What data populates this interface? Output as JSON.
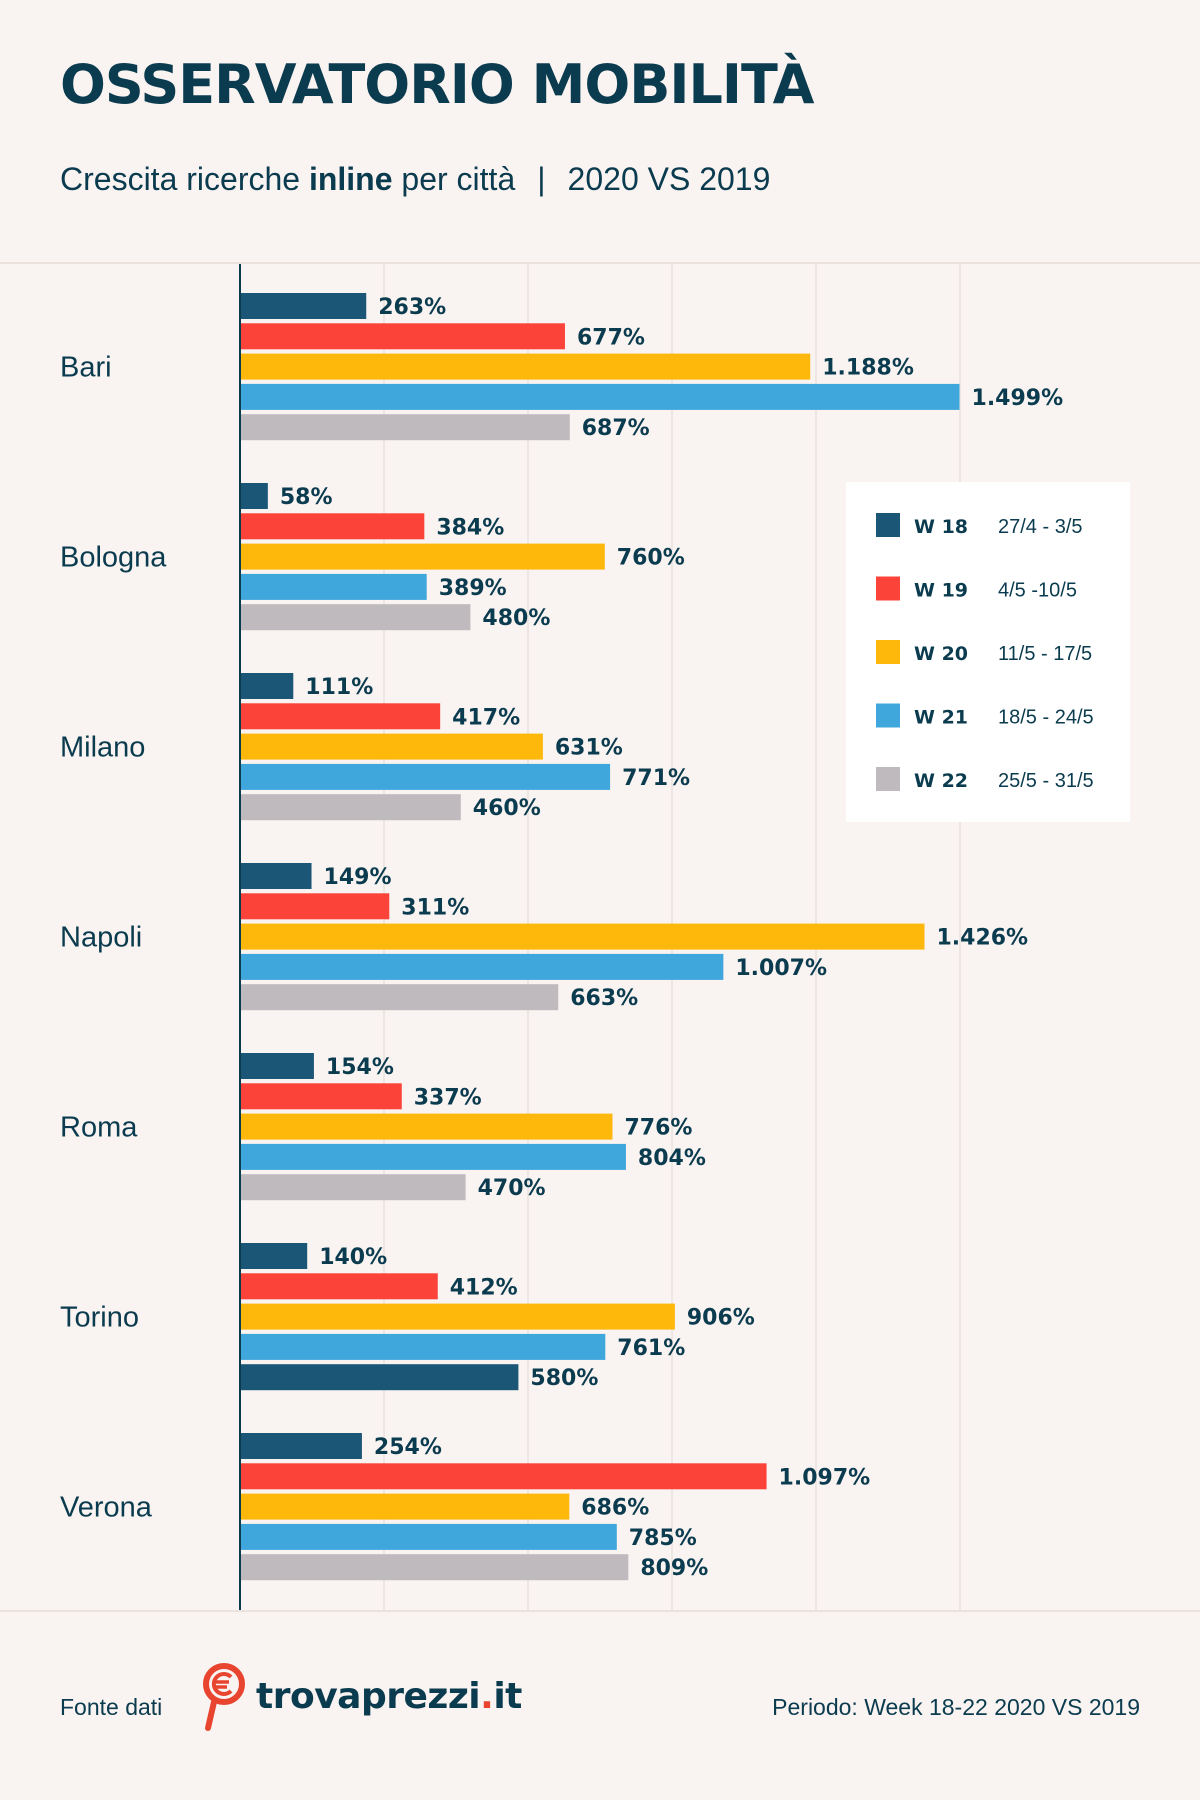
{
  "header": {
    "title": "OSSERVATORIO MOBILITÀ",
    "subtitle_pre": "Crescita ricerche ",
    "subtitle_bold": "inline",
    "subtitle_post": " per città",
    "subtitle_sep": "|",
    "subtitle_period": "2020 VS 2019"
  },
  "footer": {
    "source_label": "Fonte dati",
    "logo_name": "trovaprezzi",
    "logo_dot": ".",
    "logo_tld": "it",
    "period": "Periodo: Week 18-22 2020 VS 2019"
  },
  "colors": {
    "w18": "#1c5677",
    "w19": "#fb4339",
    "w20": "#fdb80b",
    "w21": "#40a7dd",
    "w22": "#bfbabe",
    "text": "#0b3b4e",
    "logo_red": "#e8442f"
  },
  "chart_data": {
    "type": "bar",
    "orientation": "horizontal",
    "title": "OSSERVATORIO MOBILITÀ",
    "subtitle": "Crescita ricerche inline per città | 2020 VS 2019",
    "categories": [
      "Bari",
      "Bologna",
      "Milano",
      "Napoli",
      "Roma",
      "Torino",
      "Verona"
    ],
    "xlim": [
      0,
      1500
    ],
    "gridlines": [
      300,
      600,
      900,
      1200,
      1500
    ],
    "legend_position": "right",
    "series": [
      {
        "name": "W 18",
        "period": "27/4 - 3/5",
        "color": "#1c5677",
        "values": [
          263,
          58,
          111,
          149,
          154,
          140,
          254
        ],
        "labels": [
          "263%",
          "58%",
          "111%",
          "149%",
          "154%",
          "140%",
          "254%"
        ]
      },
      {
        "name": "W 19",
        "period": "4/5 -10/5",
        "color": "#fb4339",
        "values": [
          677,
          384,
          417,
          311,
          337,
          412,
          1097
        ],
        "labels": [
          "677%",
          "384%",
          "417%",
          "311%",
          "337%",
          "412%",
          "1.097%"
        ]
      },
      {
        "name": "W 20",
        "period": "11/5 - 17/5",
        "color": "#fdb80b",
        "values": [
          1188,
          760,
          631,
          1426,
          776,
          906,
          686
        ],
        "labels": [
          "1.188%",
          "760%",
          "631%",
          "1.426%",
          "776%",
          "906%",
          "686%"
        ]
      },
      {
        "name": "W 21",
        "period": "18/5 - 24/5",
        "color": "#40a7dd",
        "values": [
          1499,
          389,
          771,
          1007,
          804,
          761,
          785
        ],
        "labels": [
          "1.499%",
          "389%",
          "771%",
          "1.007%",
          "804%",
          "761%",
          "785%"
        ]
      },
      {
        "name": "W 22",
        "period": "25/5 - 31/5",
        "color": "#bfbabe",
        "values": [
          687,
          480,
          460,
          663,
          470,
          580,
          809
        ],
        "labels": [
          "687%",
          "480%",
          "460%",
          "663%",
          "470%",
          "580%",
          "809%"
        ],
        "overrides": {
          "Torino": "#1c5677"
        }
      }
    ]
  }
}
